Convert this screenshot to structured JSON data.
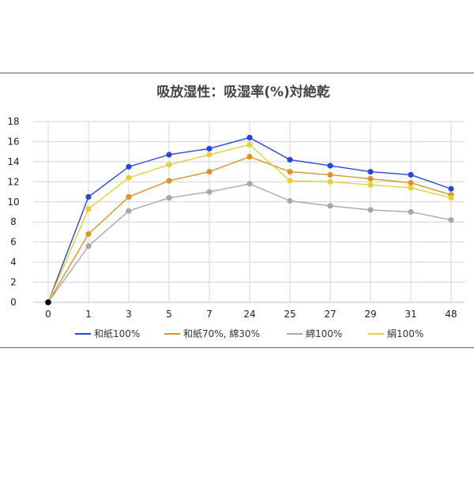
{
  "chart_data": {
    "type": "line",
    "title": "吸放湿性：吸湿率(%)対絶乾",
    "xlabel": "",
    "ylabel": "",
    "categories": [
      "0",
      "1",
      "3",
      "5",
      "7",
      "24",
      "25",
      "27",
      "29",
      "31",
      "48"
    ],
    "ylim": [
      0,
      18
    ],
    "yticks": [
      0,
      2,
      4,
      6,
      8,
      10,
      12,
      14,
      16,
      18
    ],
    "grid": true,
    "legend_position": "bottom",
    "series": [
      {
        "name": "和紙100%",
        "color": "#2447d8",
        "values": [
          0,
          10.5,
          13.5,
          14.7,
          15.3,
          16.4,
          14.2,
          13.6,
          13.0,
          12.7,
          11.3
        ]
      },
      {
        "name": "和紙70%, 綿30%",
        "color": "#dc9226",
        "values": [
          0,
          6.8,
          10.5,
          12.1,
          13.0,
          14.5,
          13.0,
          12.7,
          12.3,
          11.9,
          10.7
        ]
      },
      {
        "name": "綿100%",
        "color": "#a8a8a8",
        "values": [
          0,
          5.6,
          9.1,
          10.4,
          11.0,
          11.8,
          10.1,
          9.6,
          9.2,
          9.0,
          8.2
        ]
      },
      {
        "name": "絹100%",
        "color": "#e3cf3a",
        "values": [
          0,
          9.3,
          12.4,
          13.7,
          14.7,
          15.7,
          12.1,
          12.0,
          11.7,
          11.4,
          10.4
        ]
      }
    ],
    "origin_marker_color": "#000000"
  }
}
